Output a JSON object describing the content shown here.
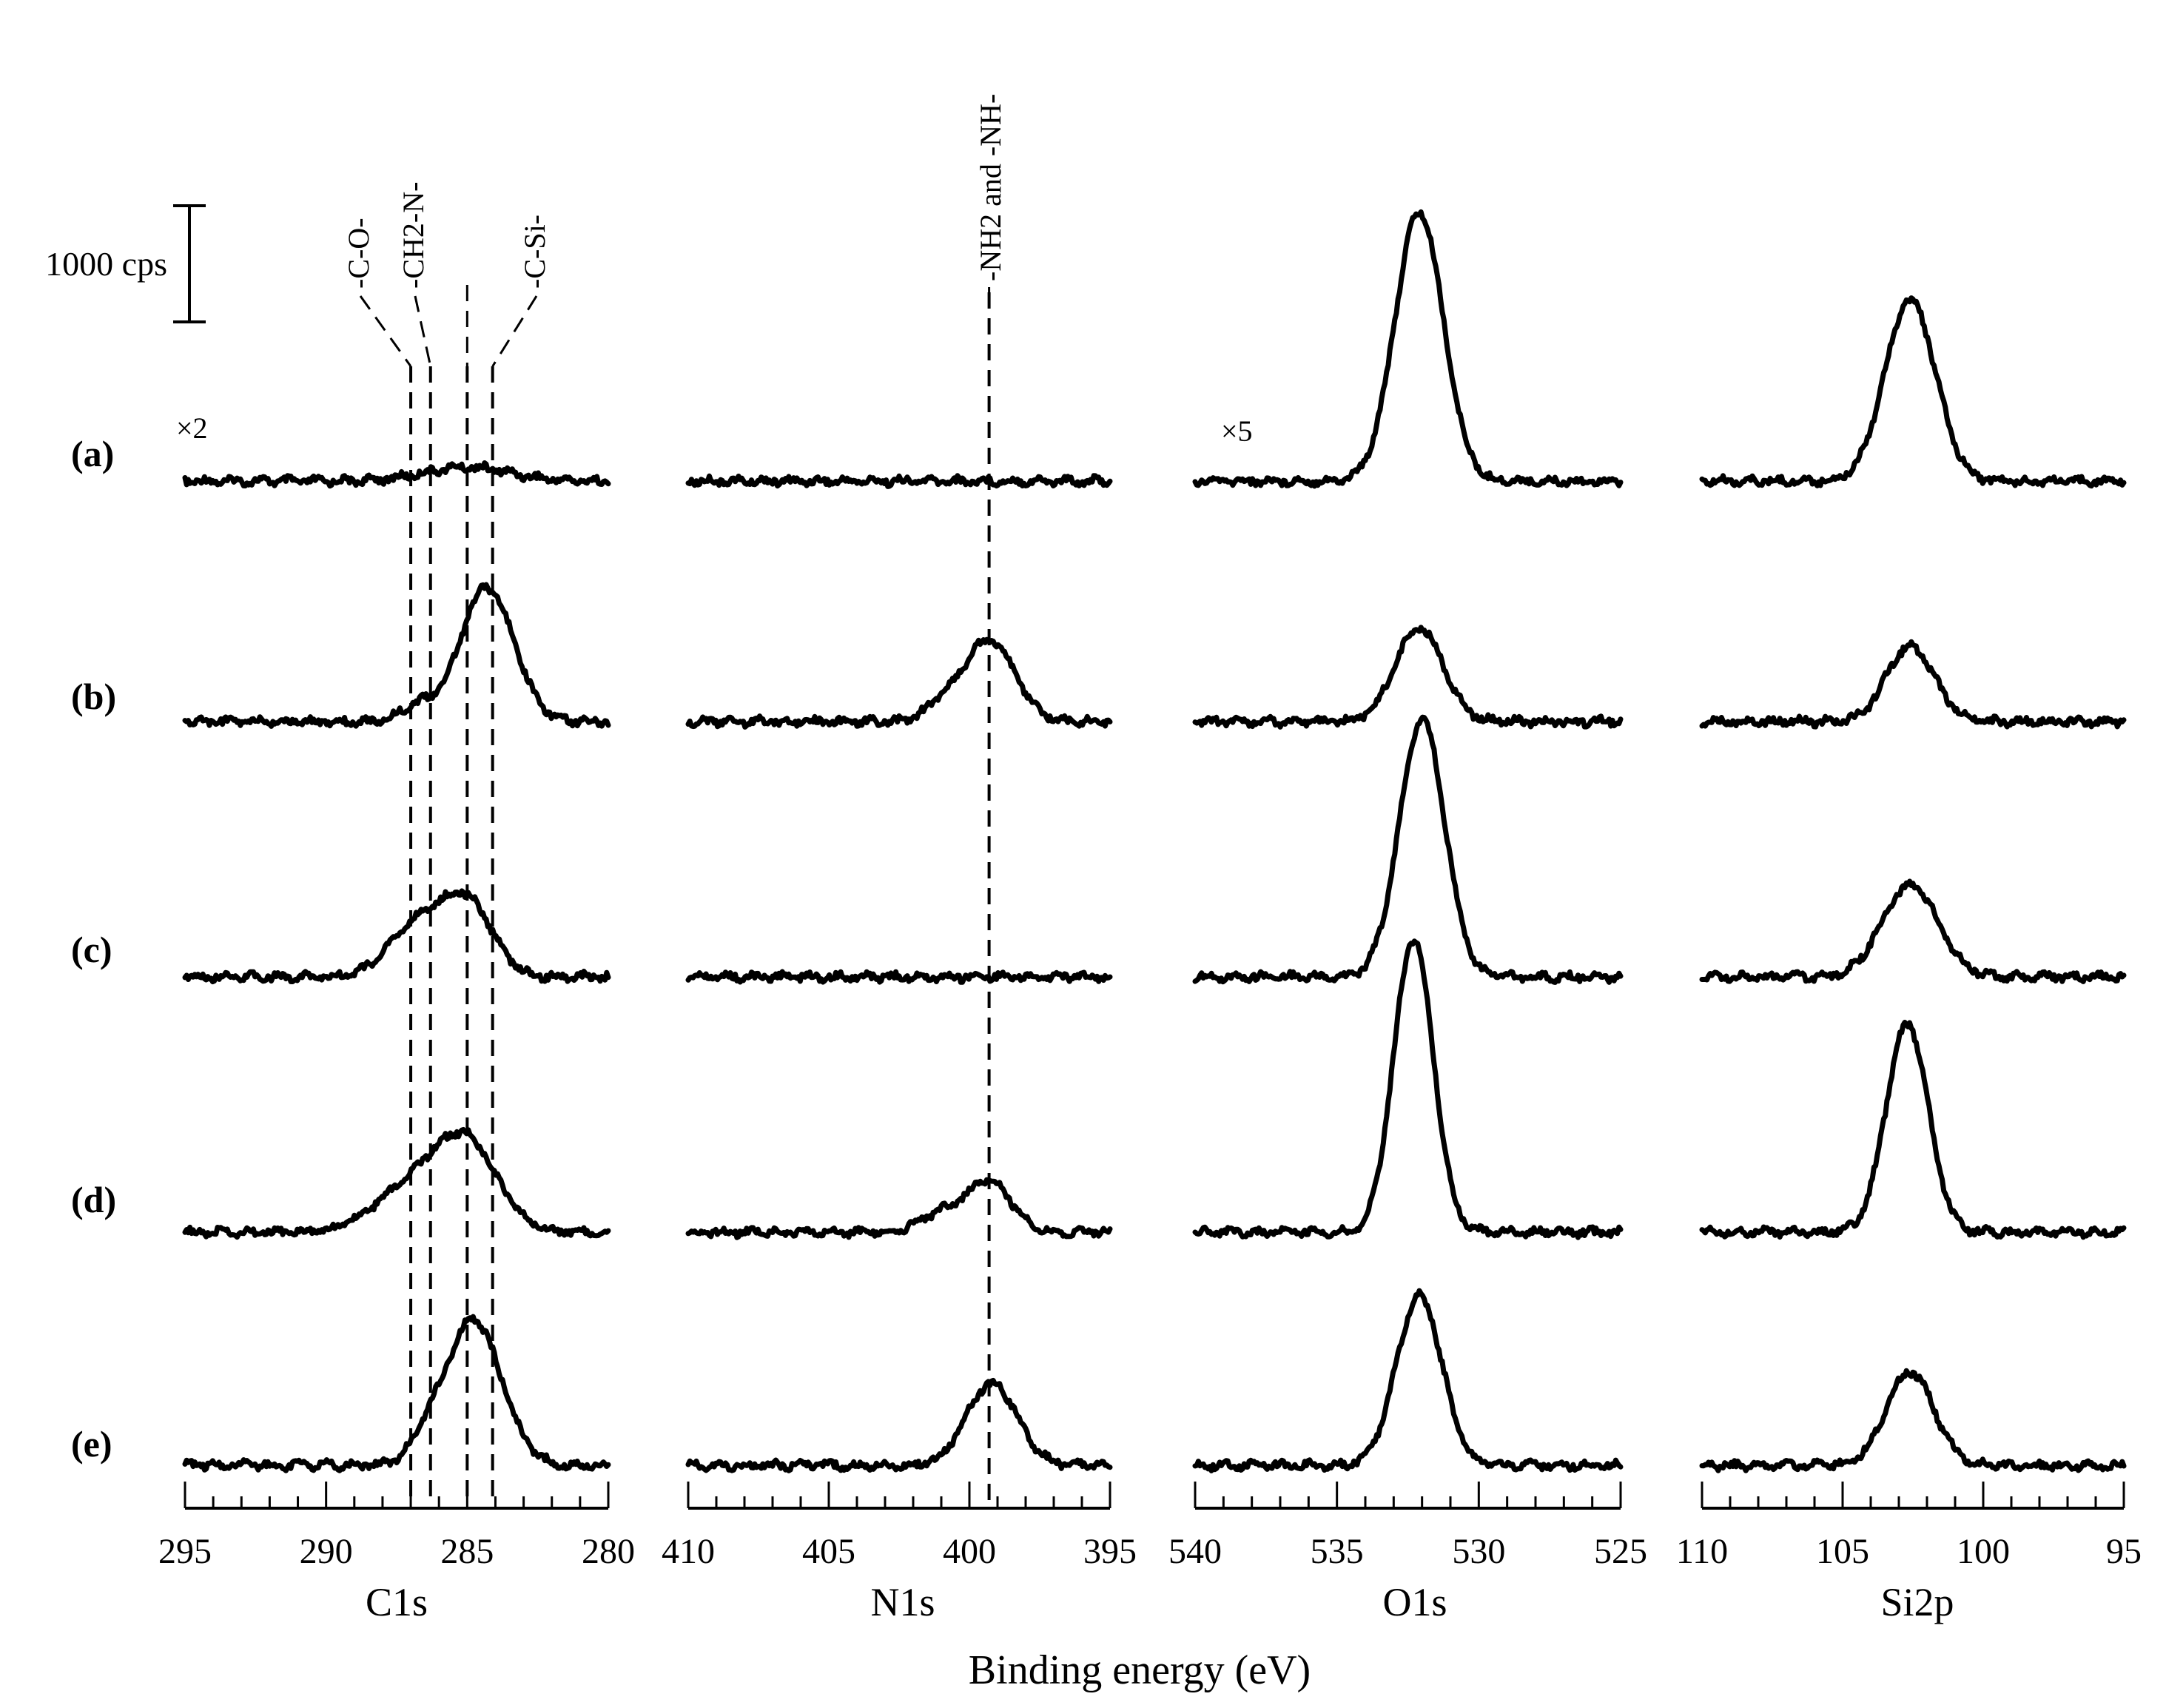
{
  "chart_data": {
    "type": "line",
    "xlabel": "Binding energy (eV)",
    "scale_bar": "1000 cps",
    "samples": [
      "(a)",
      "(b)",
      "(c)",
      "(d)",
      "(e)"
    ],
    "panels": [
      {
        "name": "C1s",
        "xlim": [
          295,
          280
        ],
        "ticks": [
          "295",
          "290",
          "285",
          "280"
        ],
        "multiplier_note": "×2",
        "reference_lines": [
          {
            "energy": 287.0,
            "label": "-C-O-"
          },
          {
            "energy": 286.3,
            "label": "-CH2-N-"
          },
          {
            "energy": 285.0
          },
          {
            "energy": 284.1,
            "label": "-C-Si-"
          }
        ],
        "series": [
          {
            "name": "(a)",
            "baseline_cps": 0,
            "peaks": [
              {
                "center": 285.0,
                "height_cps": 120,
                "width_ev": 1.5
              }
            ]
          },
          {
            "name": "(b)",
            "baseline_cps": 0,
            "peaks": [
              {
                "center": 284.3,
                "height_cps": 1150,
                "width_ev": 0.95
              },
              {
                "center": 286.8,
                "height_cps": 130,
                "width_ev": 0.6
              }
            ]
          },
          {
            "name": "(c)",
            "baseline_cps": 0,
            "peaks": [
              {
                "center": 285.0,
                "height_cps": 620,
                "width_ev": 0.9
              },
              {
                "center": 286.8,
                "height_cps": 430,
                "width_ev": 1.0
              }
            ]
          },
          {
            "name": "(d)",
            "baseline_cps": 0,
            "peaks": [
              {
                "center": 285.0,
                "height_cps": 720,
                "width_ev": 1.1
              },
              {
                "center": 287.0,
                "height_cps": 380,
                "width_ev": 1.3
              }
            ]
          },
          {
            "name": "(e)",
            "baseline_cps": 0,
            "peaks": [
              {
                "center": 284.8,
                "height_cps": 1250,
                "width_ev": 1.0
              },
              {
                "center": 286.5,
                "height_cps": 150,
                "width_ev": 0.5
              }
            ]
          }
        ]
      },
      {
        "name": "N1s",
        "xlim": [
          410,
          395
        ],
        "ticks": [
          "410",
          "405",
          "400",
          "395"
        ],
        "reference_lines": [
          {
            "energy": 399.3,
            "label": "-NH2 and -NH-"
          }
        ],
        "series": [
          {
            "name": "(a)",
            "baseline_cps": 0,
            "peaks": []
          },
          {
            "name": "(b)",
            "baseline_cps": 0,
            "peaks": [
              {
                "center": 399.3,
                "height_cps": 700,
                "width_ev": 0.9
              },
              {
                "center": 401.0,
                "height_cps": 120,
                "width_ev": 0.6
              }
            ]
          },
          {
            "name": "(c)",
            "baseline_cps": 0,
            "peaks": []
          },
          {
            "name": "(d)",
            "baseline_cps": 0,
            "peaks": [
              {
                "center": 399.3,
                "height_cps": 420,
                "width_ev": 0.8
              },
              {
                "center": 401.0,
                "height_cps": 150,
                "width_ev": 0.8
              }
            ]
          },
          {
            "name": "(e)",
            "baseline_cps": 0,
            "peaks": [
              {
                "center": 399.2,
                "height_cps": 700,
                "width_ev": 0.9
              }
            ]
          }
        ]
      },
      {
        "name": "O1s",
        "xlim": [
          540,
          525
        ],
        "ticks": [
          "540",
          "535",
          "530",
          "525"
        ],
        "multiplier_note": "×5",
        "series": [
          {
            "name": "(a)",
            "baseline_cps": 0,
            "peaks": [
              {
                "center": 532.1,
                "height_cps": 2300,
                "width_ev": 0.85
              }
            ]
          },
          {
            "name": "(b)",
            "baseline_cps": 0,
            "peaks": [
              {
                "center": 532.1,
                "height_cps": 800,
                "width_ev": 0.85
              }
            ]
          },
          {
            "name": "(c)",
            "baseline_cps": 0,
            "peaks": [
              {
                "center": 532.0,
                "height_cps": 2200,
                "width_ev": 0.8
              }
            ]
          },
          {
            "name": "(d)",
            "baseline_cps": 0,
            "peaks": [
              {
                "center": 532.3,
                "height_cps": 2500,
                "width_ev": 0.7
              }
            ]
          },
          {
            "name": "(e)",
            "baseline_cps": 0,
            "peaks": [
              {
                "center": 532.1,
                "height_cps": 1450,
                "width_ev": 0.8
              }
            ]
          }
        ]
      },
      {
        "name": "Si2p",
        "xlim": [
          110,
          95
        ],
        "ticks": [
          "110",
          "105",
          "100",
          "95"
        ],
        "series": [
          {
            "name": "(a)",
            "baseline_cps": 0,
            "peaks": [
              {
                "center": 102.6,
                "height_cps": 1550,
                "width_ev": 0.9
              }
            ]
          },
          {
            "name": "(b)",
            "baseline_cps": 0,
            "peaks": [
              {
                "center": 102.6,
                "height_cps": 640,
                "width_ev": 0.85
              }
            ]
          },
          {
            "name": "(c)",
            "baseline_cps": 0,
            "peaks": [
              {
                "center": 102.6,
                "height_cps": 780,
                "width_ev": 1.0
              }
            ]
          },
          {
            "name": "(d)",
            "baseline_cps": 0,
            "peaks": [
              {
                "center": 102.7,
                "height_cps": 1780,
                "width_ev": 0.75
              }
            ]
          },
          {
            "name": "(e)",
            "baseline_cps": 0,
            "peaks": [
              {
                "center": 102.6,
                "height_cps": 800,
                "width_ev": 0.85
              }
            ]
          }
        ]
      }
    ]
  }
}
